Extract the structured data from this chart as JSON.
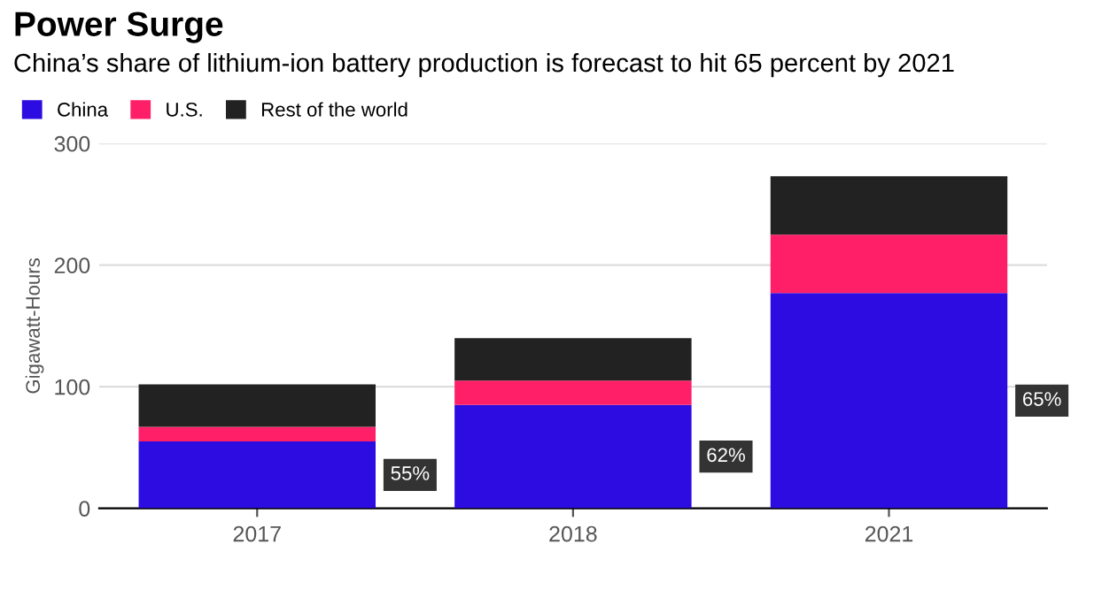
{
  "chart_data": {
    "type": "bar",
    "stacked": true,
    "title": "Power Surge",
    "subtitle": "China’s share of lithium-ion battery production is forecast to hit 65 percent by 2021",
    "ylabel": "Gigawatt-Hours",
    "categories": [
      "2017",
      "2018",
      "2021"
    ],
    "series": [
      {
        "name": "China",
        "color": "#2c0ce0",
        "values": [
          55,
          85,
          177
        ]
      },
      {
        "name": "U.S.",
        "color": "#ff1f69",
        "values": [
          12,
          20,
          48
        ]
      },
      {
        "name": "Rest of the world",
        "color": "#222222",
        "values": [
          35,
          35,
          48
        ]
      }
    ],
    "ylim": [
      0,
      300
    ],
    "yticks": [
      0,
      100,
      200,
      300
    ],
    "grid": "y",
    "legend": "top left",
    "annotations": [
      "55%",
      "62%",
      "65%"
    ]
  }
}
